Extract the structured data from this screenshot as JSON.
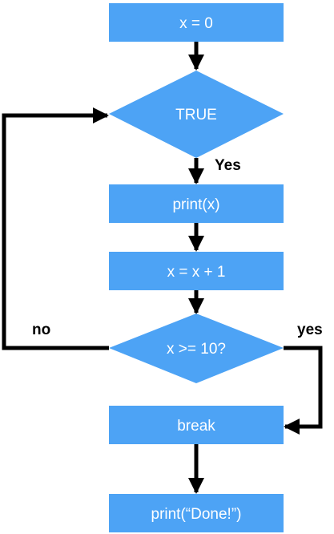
{
  "nodes": {
    "init": "x = 0",
    "loop_condition": "TRUE",
    "print_x": "print(x)",
    "increment": "x = x + 1",
    "check": "x >= 10?",
    "break_stmt": "break",
    "done": "print(“Done!”)"
  },
  "edge_labels": {
    "loop_yes": "Yes",
    "check_no": "no",
    "check_yes": "yes"
  },
  "colors": {
    "node_fill": "#4da3f5",
    "node_text": "#ffffff",
    "arrow": "#000000"
  }
}
